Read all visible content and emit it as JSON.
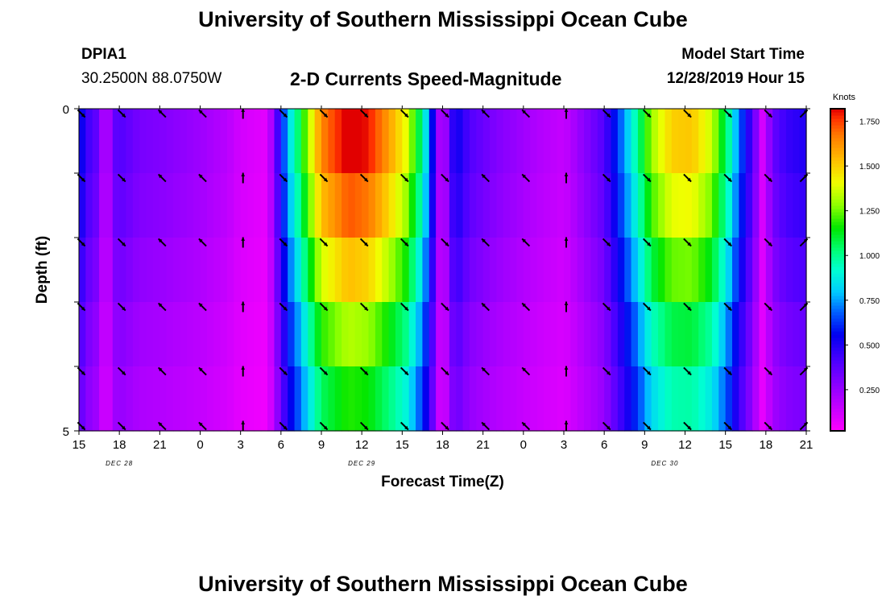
{
  "header": {
    "title_top": "University of Southern Mississippi Ocean Cube",
    "station_id": "DPIA1",
    "station_coords": "30.2500N 88.0750W",
    "plot_title": "2-D Currents Speed-Magnitude",
    "model_label": "Model Start Time",
    "model_time": "12/28/2019 Hour 15"
  },
  "footer": {
    "title_bottom": "University of Southern Mississippi Ocean Cube"
  },
  "chart_data": {
    "type": "heatmap",
    "title": "2-D Currents Speed-Magnitude",
    "xlabel": "Forecast Time(Z)",
    "ylabel": "Depth (ft)",
    "x_tick_labels": [
      "15",
      "18",
      "21",
      "0",
      "3",
      "6",
      "9",
      "12",
      "15",
      "18",
      "21",
      "0",
      "3",
      "6",
      "9",
      "12",
      "15",
      "18",
      "21"
    ],
    "x_hours_from_start": [
      0,
      3,
      6,
      9,
      12,
      15,
      18,
      21,
      24,
      27,
      30,
      33,
      36,
      39,
      42,
      45,
      48,
      51,
      54
    ],
    "date_labels": [
      {
        "text": "DEC 28",
        "hour": 3
      },
      {
        "text": "DEC 29",
        "hour": 21
      },
      {
        "text": "DEC 30",
        "hour": 43.5
      }
    ],
    "y_tick_labels": [
      "0",
      "5"
    ],
    "ylim": [
      0,
      5
    ],
    "depth_layers": 5,
    "colorbar": {
      "unit": "Knots",
      "range": [
        0.02,
        1.82
      ],
      "ticks": [
        "0.250",
        "0.500",
        "0.750",
        "1.000",
        "1.250",
        "1.500",
        "1.750"
      ],
      "tick_values": [
        0.25,
        0.5,
        0.75,
        1.0,
        1.25,
        1.5,
        1.75
      ]
    },
    "surface_speed_profile": [
      [
        0,
        0.62
      ],
      [
        0.5,
        0.45
      ],
      [
        1.5,
        0.35
      ],
      [
        2,
        0.1
      ],
      [
        2.5,
        0.35
      ],
      [
        3,
        0.4
      ],
      [
        4.5,
        0.32
      ],
      [
        6,
        0.3
      ],
      [
        9,
        0.24
      ],
      [
        11,
        0.18
      ],
      [
        12,
        0.12
      ],
      [
        14,
        0.08
      ],
      [
        14.8,
        0.45
      ],
      [
        15.5,
        0.8
      ],
      [
        16.3,
        1.05
      ],
      [
        17,
        1.3
      ],
      [
        18,
        1.65
      ],
      [
        20,
        1.85
      ],
      [
        21.5,
        1.8
      ],
      [
        23,
        1.6
      ],
      [
        24.3,
        1.4
      ],
      [
        25.2,
        1.1
      ],
      [
        26,
        0.75
      ],
      [
        26.6,
        0.3
      ],
      [
        27,
        0.1
      ],
      [
        27.5,
        0.4
      ],
      [
        28,
        0.55
      ],
      [
        29,
        0.4
      ],
      [
        31,
        0.3
      ],
      [
        34,
        0.2
      ],
      [
        36,
        0.15
      ],
      [
        37.5,
        0.28
      ],
      [
        39,
        0.4
      ],
      [
        40.5,
        0.75
      ],
      [
        41.5,
        1.0
      ],
      [
        42.5,
        1.3
      ],
      [
        44,
        1.5
      ],
      [
        45.5,
        1.52
      ],
      [
        47,
        1.35
      ],
      [
        48.2,
        1.0
      ],
      [
        49,
        0.7
      ],
      [
        50,
        0.4
      ],
      [
        50.8,
        0.1
      ],
      [
        51.5,
        0.35
      ],
      [
        52.5,
        0.45
      ],
      [
        54,
        0.5
      ]
    ],
    "layer_speed_factor": [
      1.0,
      0.93,
      0.83,
      0.72,
      0.64
    ],
    "arrow_hours": [
      0,
      3,
      6,
      9,
      12,
      15,
      18,
      21,
      24,
      27,
      30,
      33,
      36,
      39,
      42,
      45,
      48,
      51,
      54
    ],
    "arrow_directions_deg": [
      135,
      135,
      315,
      315,
      0,
      135,
      135,
      135,
      135,
      135,
      315,
      315,
      0,
      135,
      135,
      135,
      135,
      135,
      45
    ]
  }
}
